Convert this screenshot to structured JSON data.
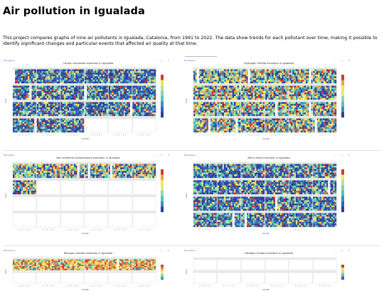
{
  "page": {
    "title": "Air pollution in Igualada",
    "intro": "This project compares graphs of nine air pollutants in Igualada, Catalonia, from 1991 to 2022. The data show trends for each pollutant over time, making it possible to identify significant changes and particular events that affected air quality at that time."
  },
  "panel_common": {
    "logo": "Plot Space",
    "controls": "− □ ✕",
    "y_axis_label": "hour",
    "x_axis_label": "month"
  },
  "panels": [
    {
      "title": "Carbon monoxide evolution in Igualada",
      "rows": 4,
      "cols": 6,
      "filled": 21,
      "scale": "low"
    },
    {
      "title": "Hydrogen Sulfide evolution in Igualada",
      "rows": 4,
      "cols": 6,
      "filled": 24,
      "scale": "mixed"
    },
    {
      "title": "Non-methane hydrocarbons evolution in Igualada",
      "rows": 4,
      "cols": 6,
      "filled": 7,
      "scale": "mixed"
    },
    {
      "title": "Nitric oxide evolution in Igualada",
      "rows": 4,
      "cols": 6,
      "filled": 24,
      "scale": "low"
    },
    {
      "title": "Nitrogen dioxide evolution in Igualada",
      "rows": 2,
      "cols": 6,
      "filled": 6,
      "scale": "high"
    },
    {
      "title": "Nitrogen Oxides evolution in Igualada",
      "rows": 2,
      "cols": 6,
      "filled": 0,
      "scale": "mid"
    }
  ],
  "colors": {
    "heat_low": "#2b3f9e",
    "heat_mid": "#57c2b4",
    "heat_high": "#f5e45a",
    "heat_peak": "#d33a2c",
    "empty": "#ffffff",
    "logo": "#3a78c4"
  }
}
